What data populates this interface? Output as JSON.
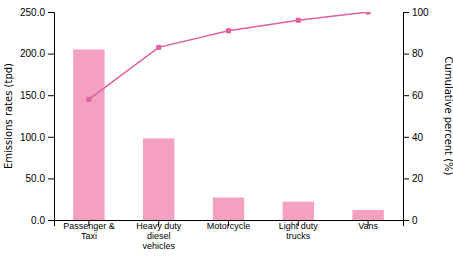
{
  "chart_data": {
    "type": "bar",
    "categories": [
      "Passenger &\nTaxi",
      "Heavy duty\ndiesel\nvehicles",
      "Motorcycle",
      "Light duty\ntrucks",
      "Vans"
    ],
    "series": [
      {
        "type": "bar",
        "color": "#f4a0c0",
        "values": [
          205.0,
          98.0,
          27.0,
          22.0,
          12.0
        ]
      },
      {
        "type": "line",
        "axis": "y2",
        "color": "#e060a0",
        "marker": "square",
        "values": [
          58,
          83,
          91,
          96,
          100
        ]
      }
    ],
    "ylabel": "Emissions rates (tpd)",
    "y2label": "Cumulative percent (%)",
    "ylim": [
      0,
      250
    ],
    "yticks": [
      {
        "value": 0.0,
        "label": "0.0"
      },
      {
        "value": 50.0,
        "label": "50.0"
      },
      {
        "value": 100.0,
        "label": "100.0"
      },
      {
        "value": 150.0,
        "label": "150.0"
      },
      {
        "value": 200.0,
        "label": "200.0"
      },
      {
        "value": 250.0,
        "label": "250.0"
      }
    ],
    "y2lim": [
      0,
      100
    ],
    "y2ticks": [
      0,
      20,
      40,
      60,
      80,
      100
    ]
  }
}
